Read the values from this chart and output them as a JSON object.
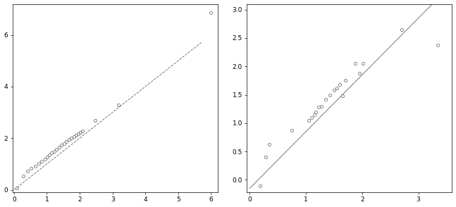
{
  "left_plot": {
    "points_x": [
      0.08,
      0.28,
      0.42,
      0.52,
      0.65,
      0.75,
      0.85,
      0.95,
      1.02,
      1.08,
      1.15,
      1.22,
      1.3,
      1.38,
      1.45,
      1.52,
      1.6,
      1.68,
      1.75,
      1.82,
      1.9,
      1.95,
      2.02,
      2.08,
      2.48,
      3.18,
      6.0
    ],
    "points_y": [
      0.08,
      0.52,
      0.72,
      0.82,
      0.92,
      1.02,
      1.1,
      1.2,
      1.28,
      1.35,
      1.42,
      1.5,
      1.58,
      1.65,
      1.72,
      1.8,
      1.88,
      1.95,
      2.0,
      2.05,
      2.12,
      2.18,
      2.22,
      2.28,
      2.7,
      3.28,
      6.85
    ],
    "line_x": [
      0.0,
      5.7
    ],
    "line_y": [
      0.0,
      5.7
    ],
    "xlim": [
      -0.05,
      6.2
    ],
    "ylim": [
      -0.1,
      7.2
    ],
    "xticks": [
      0,
      1,
      2,
      3,
      4,
      5,
      6
    ],
    "yticks": [
      0,
      2,
      4,
      6
    ],
    "line_style": "--",
    "line_color": "#777777",
    "marker_color": "#777777",
    "marker_size": 3,
    "marker_facecolor": "none",
    "marker_edgewidth": 0.6
  },
  "right_plot": {
    "points_x": [
      0.18,
      0.28,
      0.35,
      0.75,
      1.05,
      1.1,
      1.15,
      1.18,
      1.22,
      1.28,
      1.35,
      1.42,
      1.5,
      1.55,
      1.6,
      1.65,
      1.7,
      1.88,
      1.95,
      2.02,
      2.7,
      3.35
    ],
    "points_y": [
      -0.1,
      0.4,
      0.62,
      0.88,
      1.05,
      1.1,
      1.15,
      1.2,
      1.28,
      1.3,
      1.42,
      1.5,
      1.58,
      1.62,
      1.68,
      1.48,
      1.75,
      2.05,
      1.88,
      2.05,
      2.65,
      2.37
    ],
    "line_x": [
      0.0,
      3.55
    ],
    "line_y": [
      -0.15,
      3.4
    ],
    "xlim": [
      -0.05,
      3.6
    ],
    "ylim": [
      -0.22,
      3.1
    ],
    "xticks": [
      0,
      1,
      2,
      3
    ],
    "yticks": [
      0.0,
      0.5,
      1.0,
      1.5,
      2.0,
      2.5,
      3.0
    ],
    "ytick_labels": [
      "0.0",
      "0.5",
      "1.0",
      "1.5",
      "2.0",
      "2.5",
      "3.0"
    ],
    "line_style": "-",
    "line_color": "#777777",
    "marker_color": "#777777",
    "marker_size": 3,
    "marker_facecolor": "none",
    "marker_edgewidth": 0.6
  },
  "figure_background": "#ffffff",
  "axes_background": "#ffffff",
  "tick_labelsize": 6.5,
  "spine_linewidth": 0.5
}
